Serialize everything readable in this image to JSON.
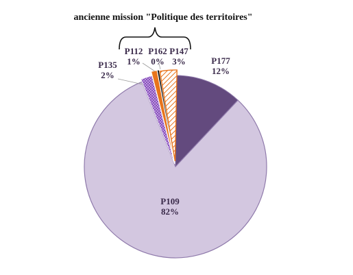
{
  "chart_data": {
    "type": "pie",
    "title": "",
    "annotation": "ancienne mission \"Politique des territoires\"",
    "slices": [
      {
        "name": "P177",
        "value": 12,
        "label": "12%",
        "color": "#634a7e",
        "pattern": "solid"
      },
      {
        "name": "P109",
        "value": 82,
        "label": "82%",
        "color": "#d3c7e0",
        "pattern": "solid"
      },
      {
        "name": "P135",
        "value": 2,
        "label": "2%",
        "color": "#7a3fb0",
        "pattern": "crosshatch"
      },
      {
        "name": "P112",
        "value": 1,
        "label": "1%",
        "color": "#e8741c",
        "pattern": "solid"
      },
      {
        "name": "P162",
        "value": 0,
        "label": "0%",
        "color": "#111111",
        "pattern": "solid"
      },
      {
        "name": "P147",
        "value": 3,
        "label": "3%",
        "color": "#e8741c",
        "pattern": "hatch"
      }
    ]
  }
}
